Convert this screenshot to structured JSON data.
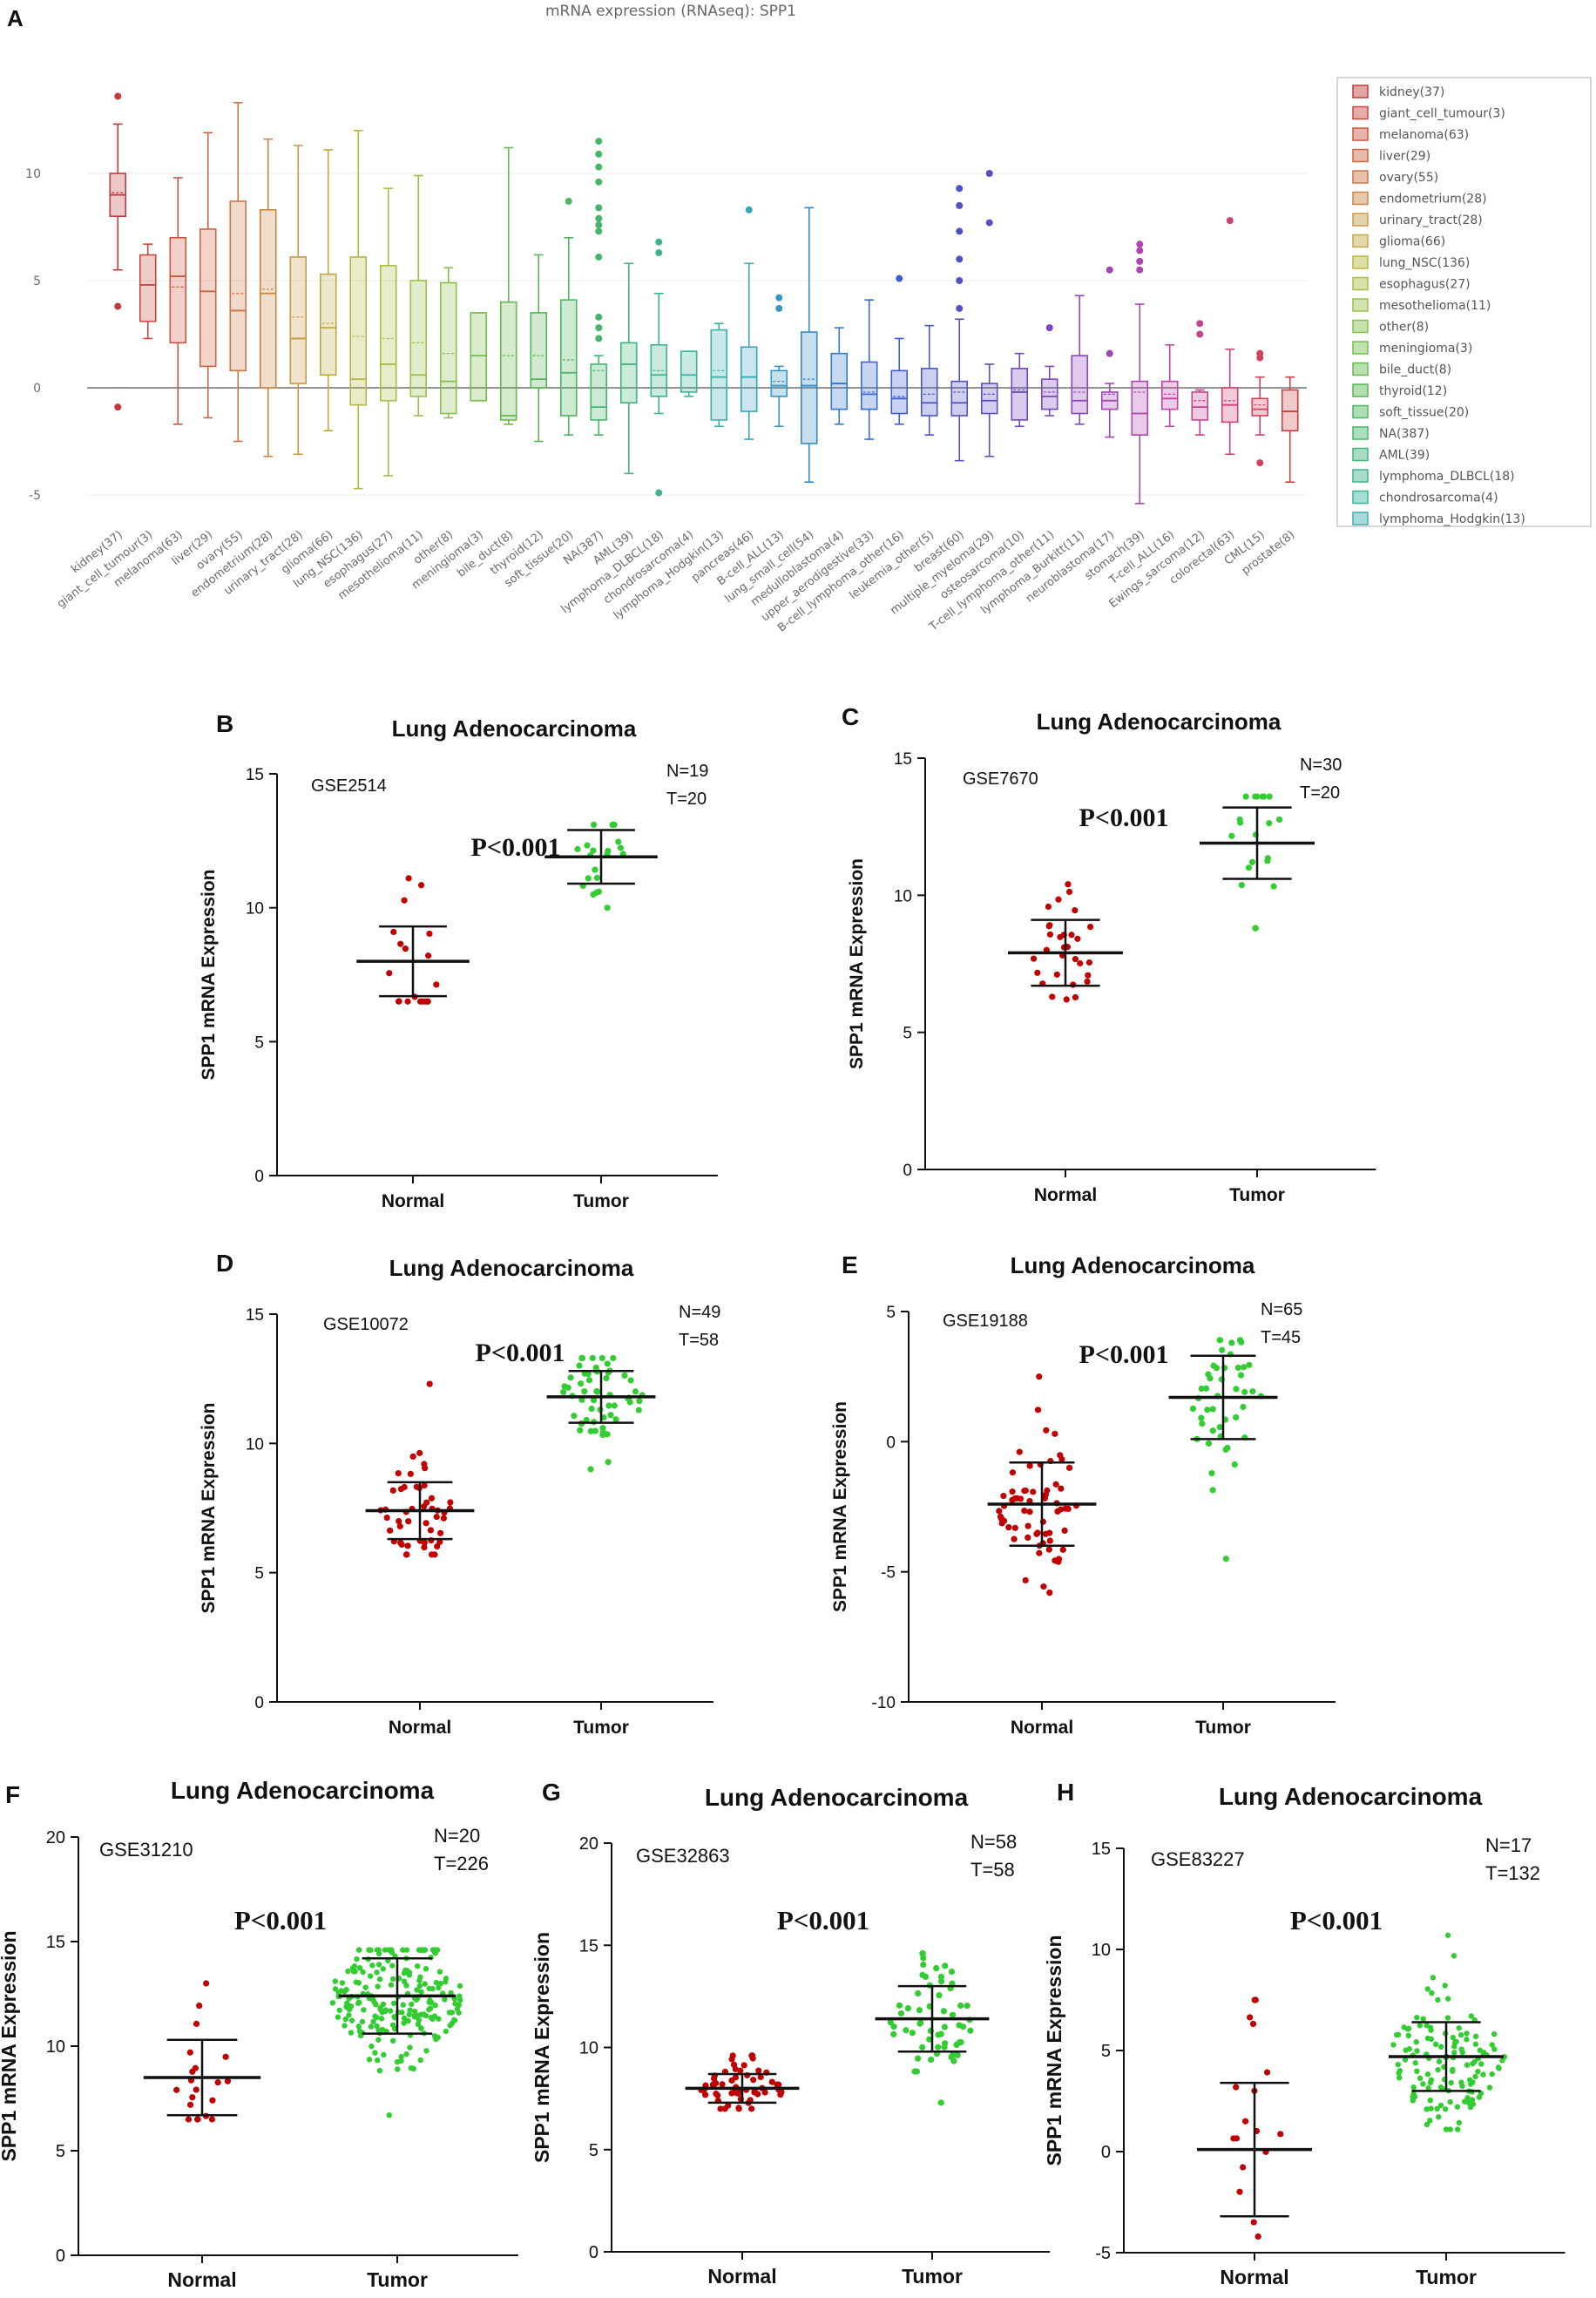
{
  "chart_data": [
    {
      "type": "box",
      "panel_label": "A",
      "title": "mRNA expression (RNAseq): SPP1",
      "ylim": [
        -6,
        14
      ],
      "yticks": [
        -5,
        0,
        5,
        10
      ],
      "legend_position": "right",
      "categories": [
        {
          "name": "kidney(37)",
          "color": "#c0393b",
          "q1": 8,
          "med": 9,
          "mean": 9.1,
          "q3": 10,
          "lo": 5.5,
          "hi": 12.3,
          "out": [
            13.6,
            3.8,
            -0.9
          ]
        },
        {
          "name": "giant_cell_tumour(3)",
          "color": "#c9473e",
          "q1": 3.1,
          "med": 4.8,
          "mean": 4.8,
          "q3": 6.2,
          "lo": 2.3,
          "hi": 6.7,
          "out": []
        },
        {
          "name": "melanoma(63)",
          "color": "#cb563f",
          "q1": 2.1,
          "med": 5.2,
          "mean": 4.7,
          "q3": 7,
          "lo": -1.7,
          "hi": 9.8,
          "out": []
        },
        {
          "name": "liver(29)",
          "color": "#cc6542",
          "q1": 1,
          "med": 4.5,
          "mean": 4.5,
          "q3": 7.4,
          "lo": -1.4,
          "hi": 11.9,
          "out": []
        },
        {
          "name": "ovary(55)",
          "color": "#cd7545",
          "q1": 0.8,
          "med": 3.6,
          "mean": 4.4,
          "q3": 8.7,
          "lo": -2.5,
          "hi": 13.3,
          "out": []
        },
        {
          "name": "endometrium(28)",
          "color": "#ca8646",
          "q1": 0,
          "med": 4.4,
          "mean": 4.6,
          "q3": 8.3,
          "lo": -3.2,
          "hi": 11.6,
          "out": []
        },
        {
          "name": "urinary_tract(28)",
          "color": "#c69a45",
          "q1": 0.2,
          "med": 2.3,
          "mean": 3.3,
          "q3": 6.1,
          "lo": -3.1,
          "hi": 11.3,
          "out": []
        },
        {
          "name": "glioma(66)",
          "color": "#bfa943",
          "q1": 0.6,
          "med": 2.8,
          "mean": 3,
          "q3": 5.3,
          "lo": -2,
          "hi": 11.1,
          "out": []
        },
        {
          "name": "lung_NSC(136)",
          "color": "#b5b640",
          "q1": -0.8,
          "med": 0.4,
          "mean": 2.4,
          "q3": 6.1,
          "lo": -4.7,
          "hi": 12,
          "out": []
        },
        {
          "name": "esophagus(27)",
          "color": "#a8bd42",
          "q1": -0.6,
          "med": 1.1,
          "mean": 2.3,
          "q3": 5.7,
          "lo": -4.1,
          "hi": 9.3,
          "out": []
        },
        {
          "name": "mesothelioma(11)",
          "color": "#98c046",
          "q1": -0.4,
          "med": 0.6,
          "mean": 2.1,
          "q3": 5,
          "lo": -1.3,
          "hi": 9.9,
          "out": []
        },
        {
          "name": "other(8)",
          "color": "#87bf4a",
          "q1": -1.2,
          "med": 0.3,
          "mean": 1.6,
          "q3": 4.9,
          "lo": -1.4,
          "hi": 5.6,
          "out": []
        },
        {
          "name": "meningioma(3)",
          "color": "#76bc4c",
          "q1": -0.6,
          "med": 1.5,
          "mean": 1.5,
          "q3": 3.5,
          "lo": -0.6,
          "hi": 3.5,
          "out": []
        },
        {
          "name": "bile_duct(8)",
          "color": "#65b84e",
          "q1": -1.5,
          "med": -1.3,
          "mean": 1.5,
          "q3": 4,
          "lo": -1.7,
          "hi": 11.2,
          "out": []
        },
        {
          "name": "thyroid(12)",
          "color": "#56b553",
          "q1": 0,
          "med": 0.4,
          "mean": 1.5,
          "q3": 3.5,
          "lo": -2.5,
          "hi": 6.2,
          "out": []
        },
        {
          "name": "soft_tissue(20)",
          "color": "#4db55d",
          "q1": -1.3,
          "med": 0.7,
          "mean": 1.3,
          "q3": 4.1,
          "lo": -2.2,
          "hi": 7,
          "out": [
            8.7
          ]
        },
        {
          "name": "NA(387)",
          "color": "#45b56b",
          "q1": -1.5,
          "med": -0.9,
          "mean": 0.8,
          "q3": 1.1,
          "lo": -2.2,
          "hi": 1.5,
          "out": [
            2.3,
            2.8,
            3.3,
            6.1,
            7.3,
            7.6,
            7.9,
            8.4,
            9.6,
            10.3,
            10.9,
            11.5
          ]
        },
        {
          "name": "AML(39)",
          "color": "#40b47a",
          "q1": -0.7,
          "med": 1.1,
          "mean": 1.1,
          "q3": 2.1,
          "lo": -4,
          "hi": 5.8,
          "out": []
        },
        {
          "name": "lymphoma_DLBCL(18)",
          "color": "#3eb38a",
          "q1": -0.4,
          "med": 0.6,
          "mean": 0.8,
          "q3": 2,
          "lo": -1.2,
          "hi": 4.4,
          "out": [
            6.3,
            6.8,
            -4.9
          ]
        },
        {
          "name": "chondrosarcoma(4)",
          "color": "#3db39a",
          "q1": -0.2,
          "med": 0.6,
          "mean": 0.6,
          "q3": 1.7,
          "lo": -0.4,
          "hi": 1.7,
          "out": []
        },
        {
          "name": "lymphoma_Hodgkin(13)",
          "color": "#3bb0aa",
          "q1": -1.5,
          "med": 0.5,
          "mean": 0.8,
          "q3": 2.7,
          "lo": -1.8,
          "hi": 3,
          "out": []
        },
        {
          "name": "pancreas(46)",
          "color": "#38a5b8",
          "q1": -1.1,
          "med": 0.5,
          "mean": 0.5,
          "q3": 1.9,
          "lo": -2.4,
          "hi": 5.8,
          "out": [
            8.3
          ]
        },
        {
          "name": "B-cell_ALL(13)",
          "color": "#3796c1",
          "q1": -0.4,
          "med": 0.1,
          "mean": 0.3,
          "q3": 0.8,
          "lo": -1.8,
          "hi": 1,
          "out": [
            3.7,
            4.2
          ]
        },
        {
          "name": "lung_small_cell(54)",
          "color": "#3687c7",
          "q1": -2.6,
          "med": 0.1,
          "mean": 0.4,
          "q3": 2.6,
          "lo": -4.4,
          "hi": 8.4,
          "out": []
        },
        {
          "name": "medulloblastoma(4)",
          "color": "#3777cb",
          "q1": -1,
          "med": 0.2,
          "mean": 0.2,
          "q3": 1.6,
          "lo": -1.7,
          "hi": 2.8,
          "out": []
        },
        {
          "name": "upper_aerodigestive(33)",
          "color": "#3b69cc",
          "q1": -1,
          "med": -0.3,
          "mean": -0.2,
          "q3": 1.2,
          "lo": -2.4,
          "hi": 4.1,
          "out": []
        },
        {
          "name": "B-cell_lymphoma_other(16)",
          "color": "#3f5ecb",
          "q1": -1.2,
          "med": -0.5,
          "mean": -0.4,
          "q3": 0.8,
          "lo": -1.7,
          "hi": 2.3,
          "out": [
            5.1
          ]
        },
        {
          "name": "leukemia_other(5)",
          "color": "#4756c8",
          "q1": -1.3,
          "med": -0.7,
          "mean": -0.3,
          "q3": 0.9,
          "lo": -2.2,
          "hi": 2.9,
          "out": []
        },
        {
          "name": "breast(60)",
          "color": "#5250c5",
          "q1": -1.3,
          "med": -0.7,
          "mean": -0.2,
          "q3": 0.3,
          "lo": -3.4,
          "hi": 3.2,
          "out": [
            3.7,
            5,
            6,
            7.3,
            8.5,
            9.3
          ]
        },
        {
          "name": "multiple_myeloma(29)",
          "color": "#5f4cc3",
          "q1": -1.2,
          "med": -0.6,
          "mean": -0.3,
          "q3": 0.2,
          "lo": -3.2,
          "hi": 1.1,
          "out": [
            7.7,
            10
          ]
        },
        {
          "name": "osteosarcoma(10)",
          "color": "#6e48c0",
          "q1": -1.5,
          "med": -0.2,
          "mean": -0.1,
          "q3": 0.9,
          "lo": -1.8,
          "hi": 1.6,
          "out": []
        },
        {
          "name": "T-cell_lymphoma_other(11)",
          "color": "#7e45bd",
          "q1": -1,
          "med": -0.4,
          "mean": -0.2,
          "q3": 0.4,
          "lo": -1.3,
          "hi": 1,
          "out": [
            2.8
          ]
        },
        {
          "name": "lymphoma_Burkitt(11)",
          "color": "#8e44b9",
          "q1": -1.2,
          "med": -0.6,
          "mean": -0.2,
          "q3": 1.5,
          "lo": -1.7,
          "hi": 4.3,
          "out": []
        },
        {
          "name": "neuroblastoma(17)",
          "color": "#9f44b5",
          "q1": -1,
          "med": -0.6,
          "mean": -0.3,
          "q3": -0.2,
          "lo": -2.3,
          "hi": 0.2,
          "out": [
            1.6,
            5.5
          ]
        },
        {
          "name": "stomach(39)",
          "color": "#b044b0",
          "q1": -2.2,
          "med": -1.2,
          "mean": -0.2,
          "q3": 0.3,
          "lo": -5.4,
          "hi": 3.9,
          "out": [
            5.5,
            5.9,
            6.4,
            6.7
          ]
        },
        {
          "name": "T-cell_ALL(16)",
          "color": "#bd43a5",
          "q1": -1,
          "med": -0.5,
          "mean": -0.3,
          "q3": 0.3,
          "lo": -1.8,
          "hi": 2,
          "out": []
        },
        {
          "name": "Ewings_sarcoma(12)",
          "color": "#c6428f",
          "q1": -1.5,
          "med": -0.9,
          "mean": -0.6,
          "q3": -0.2,
          "lo": -2.2,
          "hi": -0.1,
          "out": [
            2.5,
            3
          ]
        },
        {
          "name": "colorectal(63)",
          "color": "#cb4276",
          "q1": -1.6,
          "med": -0.8,
          "mean": -0.6,
          "q3": 0,
          "lo": -3.1,
          "hi": 1.8,
          "out": [
            7.8
          ]
        },
        {
          "name": "CML(15)",
          "color": "#cd425d",
          "q1": -1.3,
          "med": -1,
          "mean": -0.8,
          "q3": -0.5,
          "lo": -2.2,
          "hi": 0.5,
          "out": [
            1.4,
            1.6,
            -3.5
          ]
        },
        {
          "name": "prostate(8)",
          "color": "#c9413f",
          "q1": -2,
          "med": -1.1,
          "mean": -1.1,
          "q3": -0.1,
          "lo": -4.4,
          "hi": 0.5,
          "out": []
        }
      ],
      "legend": [
        {
          "label": "kidney(37)",
          "color": "#c0393b"
        },
        {
          "label": "giant_cell_tumour(3)",
          "color": "#c9473e"
        },
        {
          "label": "melanoma(63)",
          "color": "#cb563f"
        },
        {
          "label": "liver(29)",
          "color": "#cc6542"
        },
        {
          "label": "ovary(55)",
          "color": "#cd7545"
        },
        {
          "label": "endometrium(28)",
          "color": "#ca8646"
        },
        {
          "label": "urinary_tract(28)",
          "color": "#c69a45"
        },
        {
          "label": "glioma(66)",
          "color": "#bfa943"
        },
        {
          "label": "lung_NSC(136)",
          "color": "#b5b640"
        },
        {
          "label": "esophagus(27)",
          "color": "#a8bd42"
        },
        {
          "label": "mesothelioma(11)",
          "color": "#98c046"
        },
        {
          "label": "other(8)",
          "color": "#87bf4a"
        },
        {
          "label": "meningioma(3)",
          "color": "#76bc4c"
        },
        {
          "label": "bile_duct(8)",
          "color": "#65b84e"
        },
        {
          "label": "thyroid(12)",
          "color": "#56b553"
        },
        {
          "label": "soft_tissue(20)",
          "color": "#4db55d"
        },
        {
          "label": "NA(387)",
          "color": "#45b56b"
        },
        {
          "label": "AML(39)",
          "color": "#40b47a"
        },
        {
          "label": "lymphoma_DLBCL(18)",
          "color": "#3eb38a"
        },
        {
          "label": "chondrosarcoma(4)",
          "color": "#3db39a"
        },
        {
          "label": "lymphoma_Hodgkin(13)",
          "color": "#3bb0aa"
        }
      ]
    },
    {
      "type": "scatter",
      "panel_label": "B",
      "title": "Lung Adenocarcinoma",
      "dataset": "GSE2514",
      "n_label": "N=19",
      "t_label": "T=20",
      "pvalue": "P<0.001",
      "ylabel": "SPP1 mRNA Expression",
      "categories": [
        "Normal",
        "Tumor"
      ],
      "ylim": [
        0,
        15
      ],
      "yticks": [
        0,
        5,
        10,
        15
      ],
      "groups": [
        {
          "name": "Normal",
          "n": 19,
          "mean": 8,
          "sd": 1.3,
          "min": 6.5,
          "max": 11.1
        },
        {
          "name": "Tumor",
          "n": 20,
          "mean": 11.9,
          "sd": 1,
          "min": 10,
          "max": 13.1
        }
      ]
    },
    {
      "type": "scatter",
      "panel_label": "C",
      "title": "Lung Adenocarcinoma",
      "dataset": "GSE7670",
      "n_label": "N=30",
      "t_label": "T=20",
      "pvalue": "P<0.001",
      "ylabel": "SPP1 mRNA Expression",
      "categories": [
        "Normal",
        "Tumor"
      ],
      "ylim": [
        0,
        15
      ],
      "yticks": [
        0,
        5,
        10,
        15
      ],
      "groups": [
        {
          "name": "Normal",
          "n": 30,
          "mean": 7.9,
          "sd": 1.2,
          "min": 6.2,
          "max": 10.4
        },
        {
          "name": "Tumor",
          "n": 20,
          "mean": 11.9,
          "sd": 1.3,
          "min": 8.8,
          "max": 13.6
        }
      ]
    },
    {
      "type": "scatter",
      "panel_label": "D",
      "title": "Lung Adenocarcinoma",
      "dataset": "GSE10072",
      "n_label": "N=49",
      "t_label": "T=58",
      "pvalue": "P<0.001",
      "ylabel": "SPP1 mRNA Expression",
      "categories": [
        "Normal",
        "Tumor"
      ],
      "ylim": [
        0,
        15
      ],
      "yticks": [
        0,
        5,
        10,
        15
      ],
      "groups": [
        {
          "name": "Normal",
          "n": 49,
          "mean": 7.4,
          "sd": 1.1,
          "min": 5.7,
          "max": 12.3
        },
        {
          "name": "Tumor",
          "n": 58,
          "mean": 11.8,
          "sd": 1,
          "min": 9,
          "max": 13.3
        }
      ]
    },
    {
      "type": "scatter",
      "panel_label": "E",
      "title": "Lung Adenocarcinoma",
      "dataset": "GSE19188",
      "n_label": "N=65",
      "t_label": "T=45",
      "pvalue": "P<0.001",
      "ylabel": "SPP1 mRNA Expression",
      "categories": [
        "Normal",
        "Tumor"
      ],
      "ylim": [
        -10,
        5
      ],
      "yticks": [
        -10,
        -5,
        0,
        5
      ],
      "groups": [
        {
          "name": "Normal",
          "n": 65,
          "mean": -2.4,
          "sd": 1.6,
          "min": -5.8,
          "max": 2.5
        },
        {
          "name": "Tumor",
          "n": 45,
          "mean": 1.7,
          "sd": 1.6,
          "min": -4.5,
          "max": 3.9
        }
      ]
    },
    {
      "type": "scatter",
      "panel_label": "F",
      "title": "Lung Adenocarcinoma",
      "dataset": "GSE31210",
      "n_label": "N=20",
      "t_label": "T=226",
      "pvalue": "P<0.001",
      "ylabel": "SPP1 mRNA Expression",
      "categories": [
        "Normal",
        "Tumor"
      ],
      "ylim": [
        0,
        20
      ],
      "yticks": [
        0,
        5,
        10,
        15,
        20
      ],
      "groups": [
        {
          "name": "Normal",
          "n": 20,
          "mean": 8.5,
          "sd": 1.8,
          "min": 6.5,
          "max": 13
        },
        {
          "name": "Tumor",
          "n": 226,
          "mean": 12.4,
          "sd": 1.8,
          "min": 6.7,
          "max": 14.6
        }
      ]
    },
    {
      "type": "scatter",
      "panel_label": "G",
      "title": "Lung Adenocarcinoma",
      "dataset": "GSE32863",
      "n_label": "N=58",
      "t_label": "T=58",
      "pvalue": "P<0.001",
      "ylabel": "SPP1 mRNA Expression",
      "categories": [
        "Normal",
        "Tumor"
      ],
      "ylim": [
        0,
        20
      ],
      "yticks": [
        0,
        5,
        10,
        15,
        20
      ],
      "groups": [
        {
          "name": "Normal",
          "n": 58,
          "mean": 8,
          "sd": 0.7,
          "min": 7,
          "max": 9.6
        },
        {
          "name": "Tumor",
          "n": 58,
          "mean": 11.4,
          "sd": 1.6,
          "min": 7.3,
          "max": 14.6
        }
      ]
    },
    {
      "type": "scatter",
      "panel_label": "H",
      "title": "Lung Adenocarcinoma",
      "dataset": "GSE83227",
      "n_label": "N=17",
      "t_label": "T=132",
      "pvalue": "P<0.001",
      "ylabel": "SPP1 mRNA Expression",
      "categories": [
        "Normal",
        "Tumor"
      ],
      "ylim": [
        -5,
        15
      ],
      "yticks": [
        -5,
        0,
        5,
        10,
        15
      ],
      "groups": [
        {
          "name": "Normal",
          "n": 17,
          "mean": 0.1,
          "sd": 3.3,
          "min": -4.2,
          "max": 7.5
        },
        {
          "name": "Tumor",
          "n": 132,
          "mean": 4.7,
          "sd": 1.7,
          "min": 1.1,
          "max": 10.7
        }
      ]
    }
  ],
  "colors": {
    "normal": "#c00000",
    "tumor": "#33cc33",
    "bar": "#111111"
  }
}
